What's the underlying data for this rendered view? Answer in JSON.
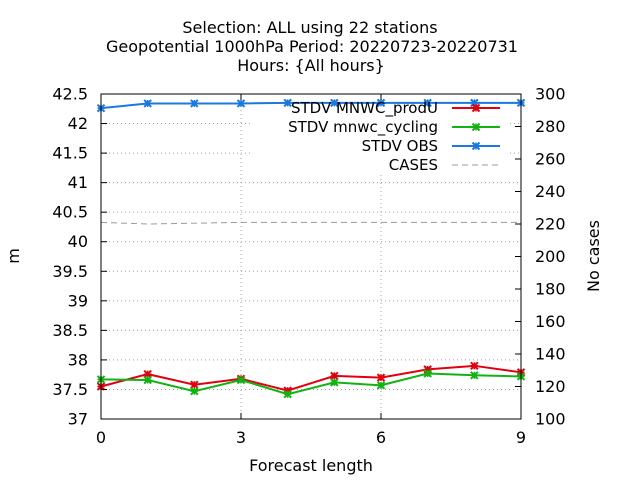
{
  "chart_data": {
    "type": "line",
    "title_lines": [
      "Selection: ALL using    22 stations",
      "Geopotential 1000hPa   Period: 20220723-20220731",
      "Hours: {All hours}"
    ],
    "xlabel": "Forecast length",
    "ylabel": "m",
    "y2label": "No cases",
    "xlim": [
      0,
      9
    ],
    "ylim": [
      37,
      42.5
    ],
    "y2lim": [
      100,
      300
    ],
    "x_ticks": [
      0,
      3,
      6,
      9
    ],
    "y_ticks": [
      37,
      37.5,
      38,
      38.5,
      39,
      39.5,
      40,
      40.5,
      41,
      41.5,
      42,
      42.5
    ],
    "y2_ticks": [
      100,
      120,
      140,
      160,
      180,
      200,
      220,
      240,
      260,
      280,
      300
    ],
    "grid": true,
    "legend_position": "top-right",
    "x": [
      0,
      1,
      2,
      3,
      4,
      5,
      6,
      7,
      8,
      9
    ],
    "series": [
      {
        "name": "STDV MNWC_prodU",
        "axis": "y",
        "color": "#e0000f",
        "marker": "x",
        "values": [
          37.55,
          37.76,
          37.58,
          37.68,
          37.48,
          37.73,
          37.7,
          37.84,
          37.9,
          37.79
        ]
      },
      {
        "name": "STDV mnwc_cycling",
        "axis": "y",
        "color": "#12b212",
        "marker": "x",
        "values": [
          37.67,
          37.66,
          37.47,
          37.66,
          37.42,
          37.62,
          37.57,
          37.77,
          37.74,
          37.72
        ]
      },
      {
        "name": "STDV OBS",
        "axis": "y",
        "color": "#1a78e0",
        "marker": "x",
        "values": [
          42.26,
          42.34,
          42.34,
          42.34,
          42.35,
          42.35,
          42.35,
          42.35,
          42.35,
          42.35
        ]
      },
      {
        "name": "CASES",
        "axis": "y2",
        "color": "#9a9a9a",
        "marker": "none",
        "dash": true,
        "values": [
          221,
          220,
          220.5,
          221,
          221,
          221,
          221,
          221,
          221,
          221
        ]
      }
    ]
  }
}
